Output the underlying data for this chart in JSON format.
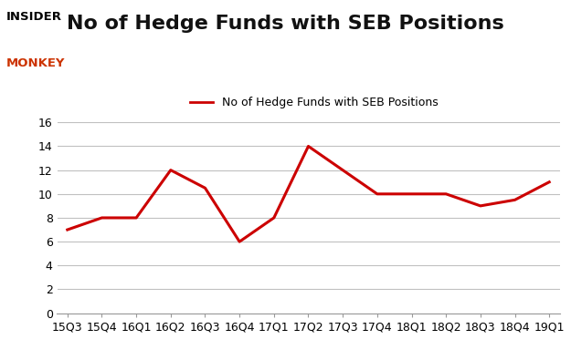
{
  "title": "No of Hedge Funds with SEB Positions",
  "legend_label": "No of Hedge Funds with SEB Positions",
  "x_labels": [
    "15Q3",
    "15Q4",
    "16Q1",
    "16Q2",
    "16Q3",
    "16Q4",
    "17Q1",
    "17Q2",
    "17Q3",
    "17Q4",
    "18Q1",
    "18Q2",
    "18Q3",
    "18Q4",
    "19Q1"
  ],
  "y_values": [
    7,
    8,
    8,
    12,
    10.5,
    6,
    8,
    14,
    12,
    10,
    10,
    10,
    9,
    9.5,
    11
  ],
  "line_color": "#cc0000",
  "ylim": [
    0,
    16
  ],
  "yticks": [
    0,
    2,
    4,
    6,
    8,
    10,
    12,
    14,
    16
  ],
  "background_color": "#ffffff",
  "plot_area_color": "#ffffff",
  "grid_color": "#c0c0c0",
  "title_fontsize": 16,
  "tick_fontsize": 9,
  "legend_fontsize": 9,
  "logo_insider_color": "#000000",
  "logo_monkey_color": "#cc3300"
}
